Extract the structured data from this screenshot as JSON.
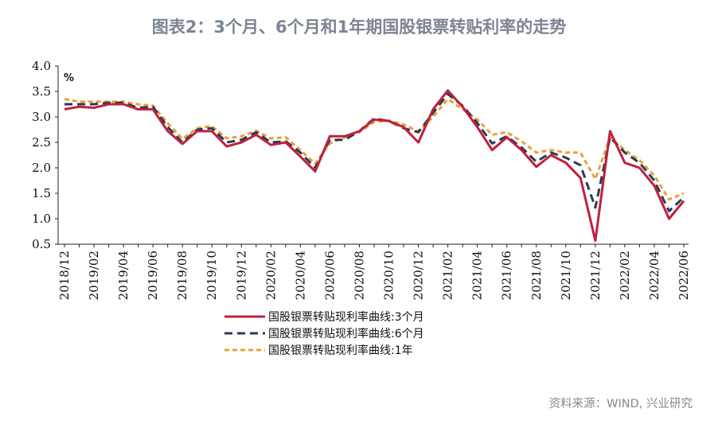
{
  "title": "图表2：3个月、6个月和1年期国股银票转贴利率的走势",
  "source": "资料来源：WIND, 兴业研究",
  "chart_data": {
    "type": "line",
    "unit": "%",
    "ylim": [
      0.5,
      4.0
    ],
    "yticks": [
      "4.0",
      "3.5",
      "3.0",
      "2.5",
      "2.0",
      "1.5",
      "1.0",
      "0.5"
    ],
    "xtick_labels": [
      "2018/12",
      "2019/02",
      "2019/04",
      "2019/06",
      "2019/08",
      "2019/10",
      "2019/12",
      "2020/02",
      "2020/04",
      "2020/06",
      "2020/08",
      "2020/10",
      "2020/12",
      "2021/02",
      "2021/04",
      "2021/06",
      "2021/08",
      "2021/10",
      "2021/12",
      "2022/02",
      "2022/04",
      "2022/06"
    ],
    "x": [
      "2018/12",
      "2019/01",
      "2019/02",
      "2019/03",
      "2019/04",
      "2019/05",
      "2019/06",
      "2019/07",
      "2019/08",
      "2019/09",
      "2019/10",
      "2019/11",
      "2019/12",
      "2020/01",
      "2020/02",
      "2020/03",
      "2020/04",
      "2020/05",
      "2020/06",
      "2020/07",
      "2020/08",
      "2020/09",
      "2020/10",
      "2020/11",
      "2020/12",
      "2021/01",
      "2021/02",
      "2021/03",
      "2021/04",
      "2021/05",
      "2021/06",
      "2021/07",
      "2021/08",
      "2021/09",
      "2021/10",
      "2021/11",
      "2021/12",
      "2022/01",
      "2022/02",
      "2022/03",
      "2022/04",
      "2022/05",
      "2022/06"
    ],
    "legend_position": "bottom-left",
    "series": [
      {
        "name": "国股银票转贴现利率曲线:3个月",
        "color": "#c0203c",
        "dash": "solid",
        "values": [
          3.15,
          3.2,
          3.18,
          3.25,
          3.25,
          3.15,
          3.15,
          2.72,
          2.47,
          2.72,
          2.72,
          2.42,
          2.5,
          2.65,
          2.45,
          2.5,
          2.22,
          1.93,
          2.62,
          2.62,
          2.72,
          2.95,
          2.92,
          2.8,
          2.5,
          3.15,
          3.52,
          3.2,
          2.8,
          2.35,
          2.6,
          2.35,
          2.02,
          2.25,
          2.1,
          1.8,
          0.57,
          2.72,
          2.1,
          2.0,
          1.65,
          1.0,
          1.35
        ]
      },
      {
        "name": "国股银票转贴现利率曲线:6个月",
        "color": "#2b3a55",
        "dash": "long",
        "values": [
          3.25,
          3.25,
          3.25,
          3.28,
          3.28,
          3.18,
          3.2,
          2.8,
          2.5,
          2.75,
          2.78,
          2.5,
          2.55,
          2.7,
          2.5,
          2.52,
          2.3,
          2.0,
          2.55,
          2.55,
          2.72,
          2.97,
          2.92,
          2.78,
          2.7,
          3.08,
          3.45,
          3.22,
          2.88,
          2.48,
          2.62,
          2.4,
          2.12,
          2.3,
          2.2,
          2.05,
          1.22,
          2.6,
          2.3,
          2.1,
          1.75,
          1.15,
          1.42
        ]
      },
      {
        "name": "国股银票转贴现利率曲线:1年",
        "color": "#e8a23c",
        "dash": "short",
        "values": [
          3.35,
          3.3,
          3.3,
          3.3,
          3.3,
          3.25,
          3.22,
          2.88,
          2.57,
          2.78,
          2.82,
          2.58,
          2.62,
          2.73,
          2.58,
          2.6,
          2.35,
          2.08,
          2.48,
          2.6,
          2.7,
          2.9,
          2.93,
          2.85,
          2.72,
          3.0,
          3.35,
          3.15,
          2.95,
          2.65,
          2.7,
          2.52,
          2.3,
          2.35,
          2.3,
          2.3,
          1.78,
          2.6,
          2.35,
          2.15,
          1.85,
          1.38,
          1.5
        ]
      }
    ]
  }
}
